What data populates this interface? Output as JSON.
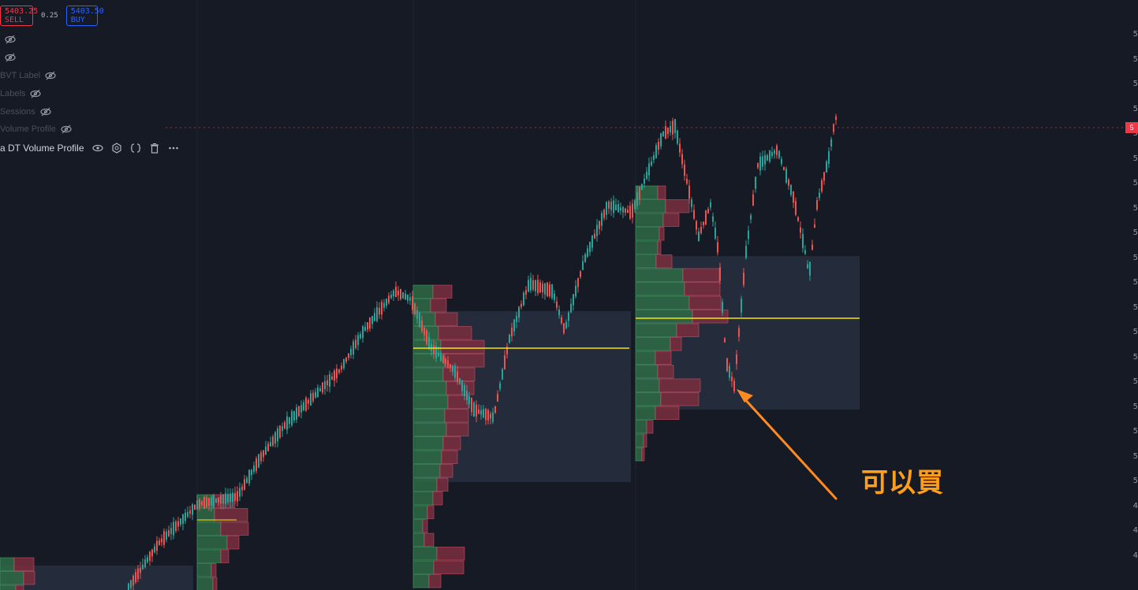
{
  "toolbar": {
    "sell_price": "5403.25",
    "sell_label": "SELL",
    "spread": "0.25",
    "buy_price": "5403.50",
    "buy_label": "BUY"
  },
  "indicators": [
    {
      "label": ""
    },
    {
      "label": ""
    },
    {
      "label": "BVT Label"
    },
    {
      "label": "Labels"
    },
    {
      "label": "Sessions"
    },
    {
      "label": "Volume Profile"
    }
  ],
  "volume_profile": {
    "label": "a DT Volume Profile",
    "icons": [
      "eye-icon",
      "settings-icon",
      "source-code-icon",
      "trash-icon",
      "more-icon"
    ]
  },
  "annotation": {
    "text": "可以買",
    "color": "#ff9e1b"
  },
  "colors": {
    "background": "#161a25",
    "bull": "#26a69a",
    "bear": "#ef5350",
    "poc": "#f5e50a",
    "value_area": "#2a3142",
    "arrow": "#ff8a1f"
  },
  "chart_data": {
    "type": "candlestick",
    "description": "Price candles with session volume profiles (POC yellow lines, value area shaded). Price axis labels cropped at right edge.",
    "x_axis_labels": [],
    "y_axis_labels": [
      "5",
      "5",
      "5",
      "5",
      "5",
      "5",
      "5",
      "5",
      "5",
      "5",
      "5",
      "5",
      "5",
      "5",
      "5",
      "5",
      "5",
      "5",
      "5",
      "4",
      "4",
      "4"
    ],
    "current_price_label": "5",
    "trend": "uptrend",
    "profiles": [
      {
        "session": 1,
        "poc": "near top"
      },
      {
        "session": 2,
        "poc": "mid"
      },
      {
        "session": 3,
        "poc": "mid"
      },
      {
        "session": 4,
        "poc": "upper"
      }
    ]
  }
}
